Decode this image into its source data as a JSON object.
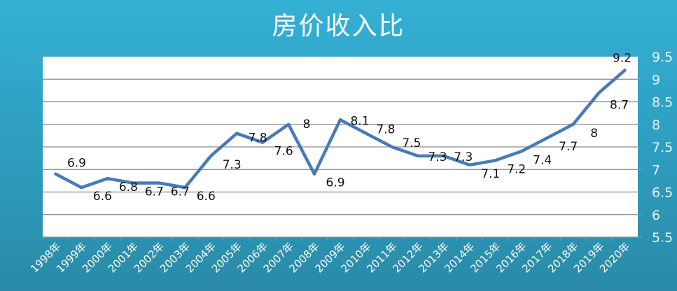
{
  "title": "房价收入比",
  "colors": {
    "background_top": "#34b0d5",
    "background_bottom": "#2a8aa7",
    "plot_bg": "#ffffff",
    "gridline": "#8c8c8c",
    "line": "#4a7ab5",
    "axis_text": "#e8f6fb",
    "data_label": "#111111"
  },
  "chart_data": {
    "type": "line",
    "title": "房价收入比",
    "xlabel": "",
    "ylabel": "",
    "ylim": [
      5.5,
      9.5
    ],
    "yticks": [
      5.5,
      6,
      6.5,
      7,
      7.5,
      8,
      8.5,
      9,
      9.5
    ],
    "y_axis_position": "right",
    "grid": true,
    "legend": "none",
    "categories": [
      "1998年",
      "1999年",
      "2000年",
      "2001年",
      "2002年",
      "2003年",
      "2004年",
      "2005年",
      "2006年",
      "2007年",
      "2008年",
      "2009年",
      "2010年",
      "2011年",
      "2012年",
      "2013年",
      "2014年",
      "2015年",
      "2016年",
      "2017年",
      "2018年",
      "2019年",
      "2020年"
    ],
    "series": [
      {
        "name": "房价收入比",
        "values": [
          6.9,
          6.6,
          6.8,
          6.7,
          6.7,
          6.6,
          7.3,
          7.8,
          7.6,
          8.0,
          6.9,
          8.1,
          7.8,
          7.5,
          7.3,
          7.3,
          7.1,
          7.2,
          7.4,
          7.7,
          8.0,
          8.7,
          9.2
        ],
        "data_labels": [
          "6.9",
          "6.6",
          "6.8",
          "6.7",
          "6.7",
          "6.6",
          "7.3",
          "7.8",
          "7.6",
          "8",
          "6.9",
          "8.1",
          "7.8",
          "7.5",
          "7.3",
          "7.3",
          "7.1",
          "7.2",
          "7.4",
          "7.7",
          "8",
          "8.7",
          "9.2"
        ]
      }
    ]
  }
}
